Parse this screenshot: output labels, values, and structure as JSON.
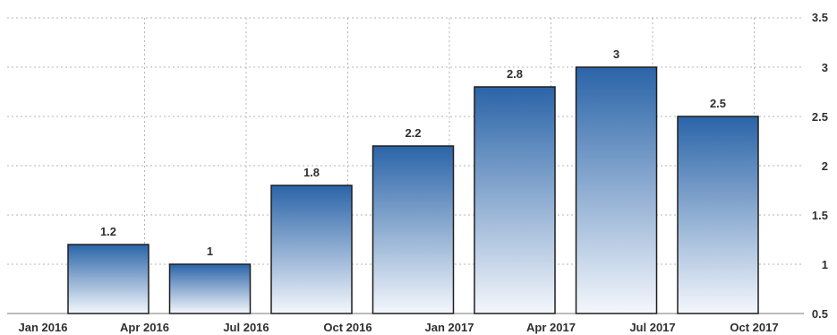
{
  "chart_data": {
    "type": "bar",
    "title": "",
    "xlabel": "",
    "ylabel": "",
    "x_tick_labels": [
      "Jan 2016",
      "Apr 2016",
      "Jul 2016",
      "Oct 2016",
      "Jan 2017",
      "Apr 2017",
      "Jul 2017",
      "Oct 2017"
    ],
    "categories": [
      "Apr 2016",
      "Jul 2016",
      "Oct 2016",
      "Jan 2017",
      "Apr 2017",
      "Jul 2017",
      "Oct 2017"
    ],
    "values": [
      1.2,
      1,
      1.8,
      2.2,
      2.8,
      3,
      2.5
    ],
    "data_labels": [
      "1.2",
      "1",
      "1.8",
      "2.2",
      "2.8",
      "3",
      "2.5"
    ],
    "y_ticks": [
      "0.5",
      "1",
      "1.5",
      "2",
      "2.5",
      "3",
      "3.5"
    ],
    "ylim": [
      0.5,
      3.5
    ],
    "y_axis_position": "right",
    "grid": true,
    "colors": {
      "bar_top": "#2a64a8",
      "bar_bottom": "#f4f7fc",
      "bar_border": "#1e1e1e",
      "grid": "#b5b5b5"
    }
  }
}
